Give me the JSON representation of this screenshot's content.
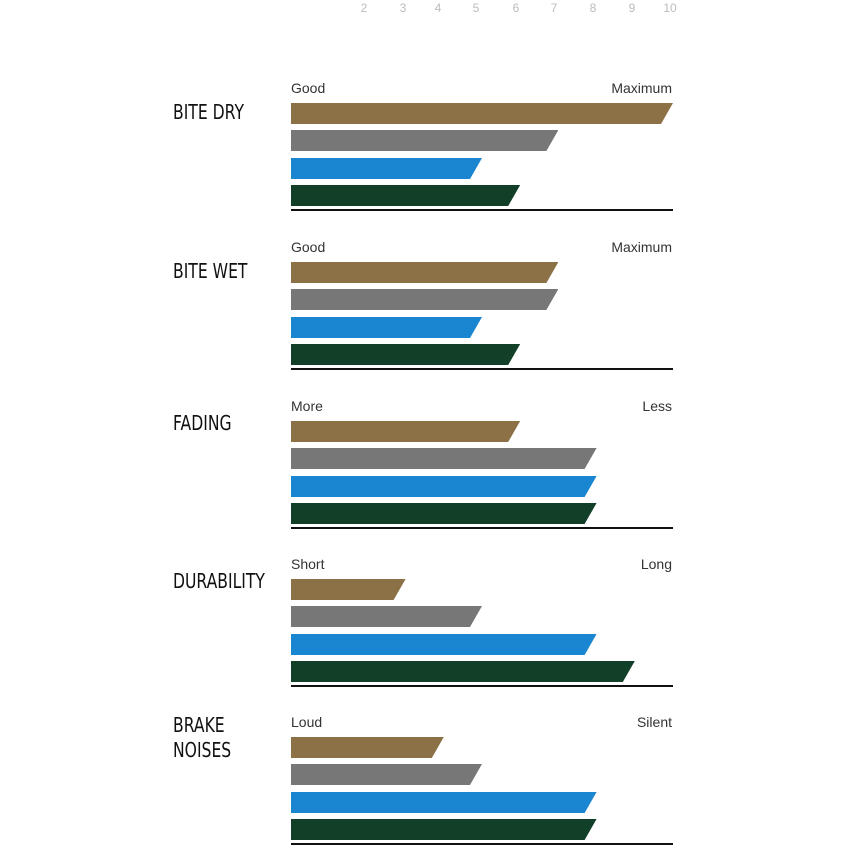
{
  "scale": {
    "ticks": [
      "2",
      "3",
      "4",
      "5",
      "6",
      "7",
      "8",
      "9",
      "10"
    ]
  },
  "colors": {
    "series": [
      "#8c7147",
      "#777777",
      "#1a85d0",
      "#123f28"
    ]
  },
  "chart_data": {
    "type": "bar",
    "orientation": "horizontal",
    "categories": [
      "BITE DRY",
      "BITE WET",
      "FADING",
      "DURABILITY",
      "BRAKE NOISES"
    ],
    "scale_labels": [
      {
        "low": "Good",
        "high": "Maximum"
      },
      {
        "low": "Good",
        "high": "Maximum"
      },
      {
        "low": "More",
        "high": "Less"
      },
      {
        "low": "Short",
        "high": "Long"
      },
      {
        "low": "Loud",
        "high": "Silent"
      }
    ],
    "xlim": [
      0,
      10
    ],
    "grid": false,
    "legend": "none",
    "series": [
      {
        "color": "#8c7147",
        "values": [
          10,
          7,
          6,
          3,
          4
        ]
      },
      {
        "color": "#777777",
        "values": [
          7,
          7,
          8,
          5,
          5
        ]
      },
      {
        "color": "#1a85d0",
        "values": [
          5,
          5,
          8,
          8,
          8
        ]
      },
      {
        "color": "#123f28",
        "values": [
          6,
          6,
          8,
          9,
          8
        ]
      }
    ]
  }
}
